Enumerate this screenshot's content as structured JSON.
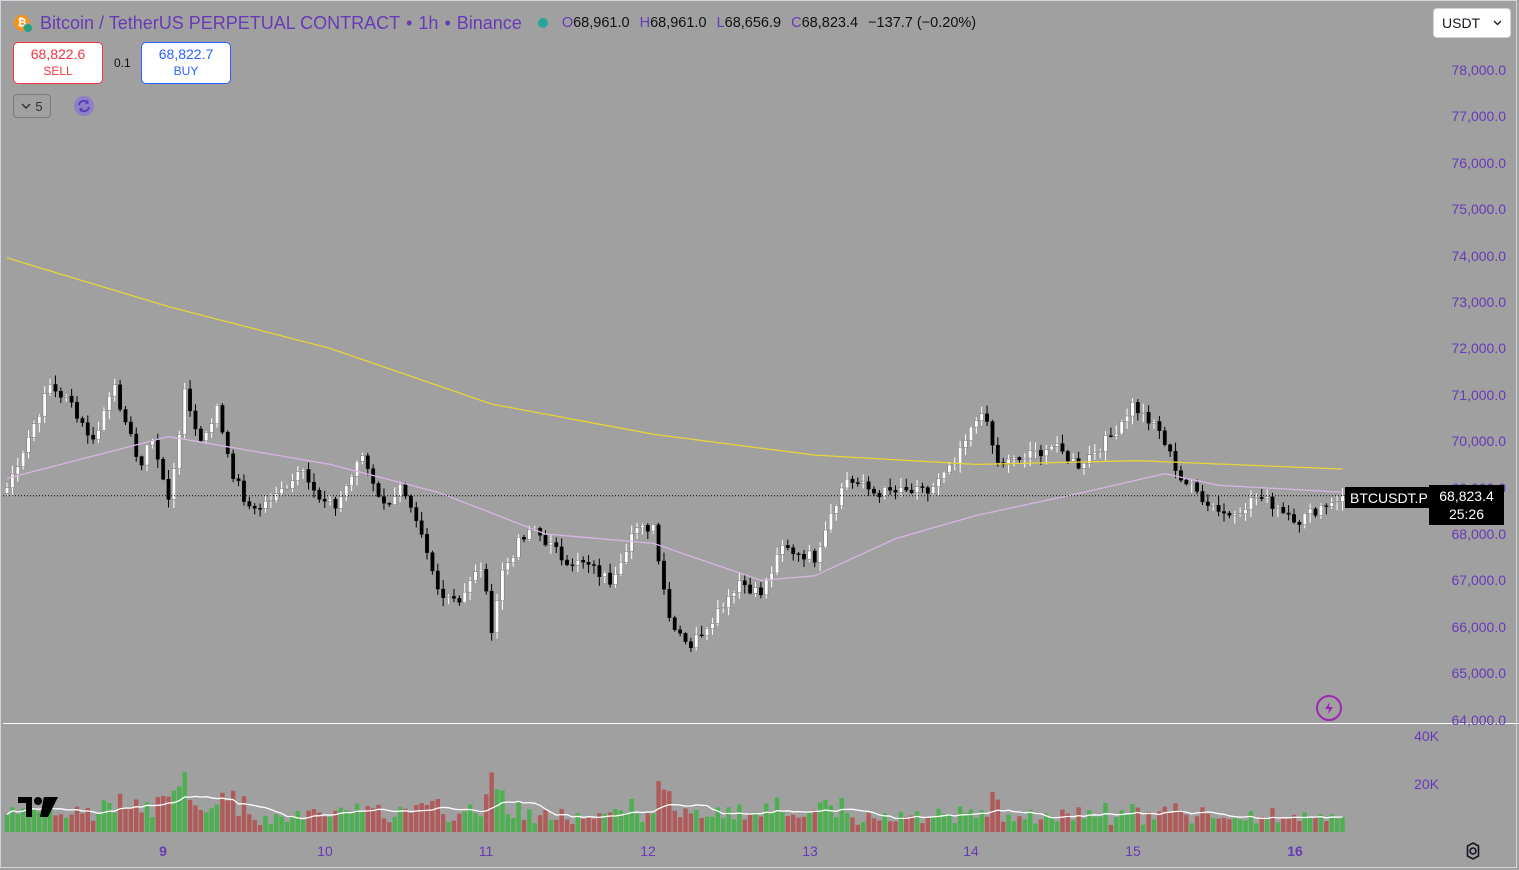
{
  "header": {
    "symbol_name": "Bitcoin / TetherUS PERPETUAL CONTRACT",
    "interval": "1h",
    "exchange": "Binance",
    "ohlc": {
      "o_label": "O",
      "o": "68,961.0",
      "h_label": "H",
      "h": "68,961.0",
      "l_label": "L",
      "l": "68,656.9",
      "c_label": "C",
      "c": "68,823.4",
      "change": "−137.7 (−0.20%)"
    }
  },
  "trade": {
    "sell_price": "68,822.6",
    "sell_label": "SELL",
    "spread": "0.1",
    "buy_price": "68,822.7",
    "buy_label": "BUY"
  },
  "indicators_toggle": {
    "count": "5"
  },
  "currency_select": {
    "value": "USDT"
  },
  "price_axis": [
    {
      "label": "78,000.0",
      "value": 78000
    },
    {
      "label": "77,000.0",
      "value": 77000
    },
    {
      "label": "76,000.0",
      "value": 76000
    },
    {
      "label": "75,000.0",
      "value": 75000
    },
    {
      "label": "74,000.0",
      "value": 74000
    },
    {
      "label": "73,000.0",
      "value": 73000
    },
    {
      "label": "72,000.0",
      "value": 72000
    },
    {
      "label": "71,000.0",
      "value": 71000
    },
    {
      "label": "70,000.0",
      "value": 70000
    },
    {
      "label": "69,000.0",
      "value": 69000
    },
    {
      "label": "68,000.0",
      "value": 68000
    },
    {
      "label": "67,000.0",
      "value": 67000
    },
    {
      "label": "66,000.0",
      "value": 66000
    },
    {
      "label": "65,000.0",
      "value": 65000
    },
    {
      "label": "64,000.0",
      "value": 64000
    }
  ],
  "last_price": {
    "symbol": "BTCUSDT.P",
    "price": "68,823.4",
    "countdown": "25:26",
    "value": 68823.4
  },
  "volume_axis": [
    {
      "label": "40K",
      "value": 40000
    },
    {
      "label": "20K",
      "value": 20000
    }
  ],
  "time_axis": [
    {
      "label": "9",
      "bold": true
    },
    {
      "label": "10",
      "bold": false
    },
    {
      "label": "11",
      "bold": false
    },
    {
      "label": "12",
      "bold": false
    },
    {
      "label": "13",
      "bold": false
    },
    {
      "label": "14",
      "bold": false
    },
    {
      "label": "15",
      "bold": false
    },
    {
      "label": "16",
      "bold": true
    }
  ],
  "colors": {
    "up": "#ffffff",
    "down": "#000000",
    "vol_up": "#4caf50",
    "vol_down": "#b05a5a",
    "ma_slow": "#e6d43a",
    "ma_fast": "#d8b4e2",
    "accent": "#673ab7"
  },
  "chart_data": {
    "type": "candlestick",
    "price_range": [
      64000,
      78000
    ],
    "volume_range": [
      0,
      40000
    ],
    "series": [
      {
        "name": "BTCUSDT.P",
        "anchors": [
          [
            0,
            69000
          ],
          [
            8,
            71200
          ],
          [
            12,
            70800
          ],
          [
            16,
            70000
          ],
          [
            20,
            71300
          ],
          [
            22,
            70300
          ],
          [
            25,
            69500
          ],
          [
            27,
            70100
          ],
          [
            30,
            68700
          ],
          [
            33,
            71000
          ],
          [
            36,
            70000
          ],
          [
            39,
            70700
          ],
          [
            42,
            69300
          ],
          [
            45,
            68500
          ],
          [
            50,
            68800
          ],
          [
            55,
            69500
          ],
          [
            58,
            68700
          ],
          [
            61,
            68600
          ],
          [
            66,
            69700
          ],
          [
            70,
            68600
          ],
          [
            73,
            69000
          ],
          [
            77,
            67900
          ],
          [
            80,
            66800
          ],
          [
            84,
            66600
          ],
          [
            88,
            67300
          ],
          [
            90,
            66000
          ],
          [
            92,
            67200
          ],
          [
            95,
            67800
          ],
          [
            98,
            68100
          ],
          [
            103,
            67500
          ],
          [
            108,
            67300
          ],
          [
            112,
            67000
          ],
          [
            116,
            68000
          ],
          [
            120,
            68200
          ],
          [
            123,
            66200
          ],
          [
            127,
            65600
          ],
          [
            131,
            66200
          ],
          [
            136,
            67000
          ],
          [
            140,
            66700
          ],
          [
            144,
            67700
          ],
          [
            150,
            67500
          ],
          [
            153,
            68500
          ],
          [
            156,
            69200
          ],
          [
            161,
            68900
          ],
          [
            166,
            68900
          ],
          [
            171,
            68900
          ],
          [
            176,
            69500
          ],
          [
            181,
            70700
          ],
          [
            184,
            69500
          ],
          [
            188,
            69600
          ],
          [
            194,
            69900
          ],
          [
            199,
            69500
          ],
          [
            205,
            70100
          ],
          [
            209,
            70800
          ],
          [
            214,
            70200
          ],
          [
            218,
            69200
          ],
          [
            223,
            68700
          ],
          [
            227,
            68400
          ],
          [
            232,
            68800
          ],
          [
            236,
            68600
          ],
          [
            240,
            68300
          ],
          [
            244,
            68600
          ],
          [
            248,
            68823
          ]
        ]
      },
      {
        "name": "MA slow",
        "anchors": [
          [
            0,
            73950
          ],
          [
            30,
            72900
          ],
          [
            60,
            72000
          ],
          [
            90,
            70800
          ],
          [
            120,
            70150
          ],
          [
            150,
            69700
          ],
          [
            180,
            69500
          ],
          [
            210,
            69580
          ],
          [
            248,
            69400
          ]
        ]
      },
      {
        "name": "MA fast",
        "anchors": [
          [
            0,
            69200
          ],
          [
            20,
            69800
          ],
          [
            30,
            70100
          ],
          [
            45,
            69800
          ],
          [
            60,
            69500
          ],
          [
            80,
            68900
          ],
          [
            100,
            68000
          ],
          [
            120,
            67800
          ],
          [
            140,
            67000
          ],
          [
            150,
            67100
          ],
          [
            165,
            67900
          ],
          [
            180,
            68400
          ],
          [
            200,
            68900
          ],
          [
            215,
            69300
          ],
          [
            225,
            69050
          ],
          [
            248,
            68900
          ]
        ]
      }
    ]
  }
}
